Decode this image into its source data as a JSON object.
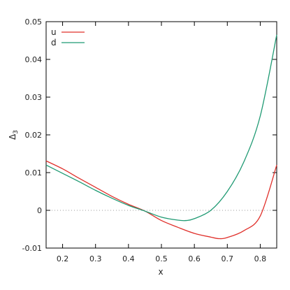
{
  "chart_data": {
    "type": "line",
    "xlabel": "x",
    "ylabel": "Δ",
    "ylabel_subscript": "3",
    "xlim": [
      0.15,
      0.85
    ],
    "ylim": [
      -0.01,
      0.05
    ],
    "xticks": [
      0.2,
      0.3,
      0.4,
      0.5,
      0.6,
      0.7,
      0.8
    ],
    "xtick_labels": [
      "0.2",
      "0.3",
      "0.4",
      "0.5",
      "0.6",
      "0.7",
      "0.8"
    ],
    "yticks": [
      -0.01,
      0,
      0.01,
      0.02,
      0.03,
      0.04,
      0.05
    ],
    "ytick_labels": [
      "-0.01",
      "0",
      "0.01",
      "0.02",
      "0.03",
      "0.04",
      "0.05"
    ],
    "zero_line": true,
    "grid": false,
    "legend_position": "top-left",
    "series": [
      {
        "name": "u",
        "color": "#e0302b",
        "x": [
          0.15,
          0.2,
          0.25,
          0.3,
          0.35,
          0.4,
          0.45,
          0.5,
          0.55,
          0.6,
          0.65,
          0.675,
          0.7,
          0.75,
          0.8,
          0.85
        ],
        "y": [
          0.0131,
          0.011,
          0.0085,
          0.0061,
          0.0037,
          0.0016,
          -0.0002,
          -0.0027,
          -0.0045,
          -0.0061,
          -0.0071,
          -0.0075,
          -0.0072,
          -0.0054,
          -0.0015,
          0.012
        ]
      },
      {
        "name": "d",
        "color": "#1f9a73",
        "x": [
          0.15,
          0.2,
          0.25,
          0.3,
          0.35,
          0.4,
          0.45,
          0.5,
          0.55,
          0.575,
          0.6,
          0.65,
          0.7,
          0.75,
          0.8,
          0.85
        ],
        "y": [
          0.012,
          0.0098,
          0.0076,
          0.0053,
          0.0032,
          0.0013,
          -0.0002,
          -0.0018,
          -0.0026,
          -0.0027,
          -0.0022,
          0.0,
          0.005,
          0.0128,
          0.025,
          0.0465
        ]
      }
    ]
  }
}
